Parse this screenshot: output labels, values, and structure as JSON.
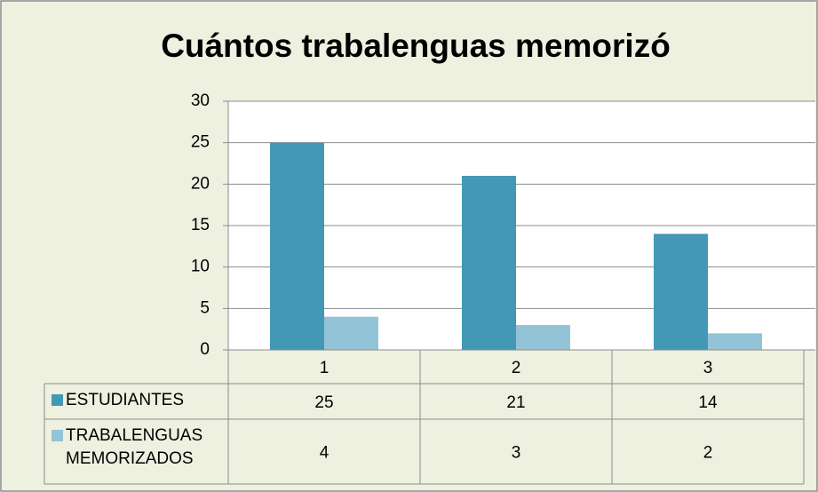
{
  "chart_data": {
    "type": "bar",
    "title": "Cuántos trabalenguas memorizó",
    "categories": [
      "1",
      "2",
      "3"
    ],
    "series": [
      {
        "name": "ESTUDIANTES",
        "color": "#4298b5",
        "values": [
          25,
          21,
          14
        ]
      },
      {
        "name": "TRABALENGUAS MEMORIZADOS",
        "color": "#93c3d6",
        "values": [
          4,
          3,
          2
        ]
      }
    ],
    "ylim": [
      0,
      30
    ],
    "yticks": [
      0,
      5,
      10,
      15,
      20,
      25,
      30
    ],
    "grid": true,
    "data_table": true
  }
}
